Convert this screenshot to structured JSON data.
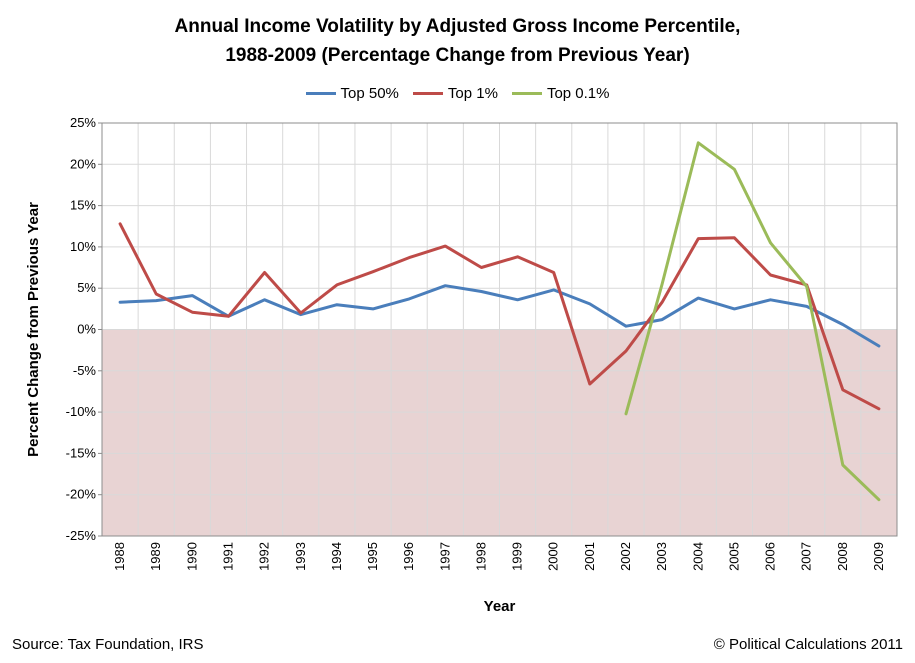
{
  "chart_data": {
    "type": "line",
    "title": "Annual Income Volatility by Adjusted Gross Income Percentile,",
    "subtitle": "1988-2009 (Percentage Change from Previous Year)",
    "xlabel": "Year",
    "ylabel": "Percent Change from Previous Year",
    "ylim": [
      -25,
      25
    ],
    "ytick_step": 5,
    "ytick_suffix": "%",
    "grid": true,
    "legend_position": "top",
    "negative_region_color": "#e8d3d3",
    "categories": [
      "1988",
      "1989",
      "1990",
      "1991",
      "1992",
      "1993",
      "1994",
      "1995",
      "1996",
      "1997",
      "1998",
      "1999",
      "2000",
      "2001",
      "2002",
      "2003",
      "2004",
      "2005",
      "2006",
      "2007",
      "2008",
      "2009"
    ],
    "series": [
      {
        "name": "Top 50%",
        "color": "#4a7ebb",
        "values": [
          3.3,
          3.5,
          4.1,
          1.6,
          3.6,
          1.8,
          3.0,
          2.5,
          3.7,
          5.3,
          4.6,
          3.6,
          4.8,
          3.1,
          0.4,
          1.2,
          3.8,
          2.5,
          3.6,
          2.8,
          0.6,
          -2.0
        ]
      },
      {
        "name": "Top 1%",
        "color": "#be4b48",
        "values": [
          12.8,
          4.3,
          2.1,
          1.6,
          6.9,
          2.0,
          5.4,
          7.0,
          8.7,
          10.1,
          7.5,
          8.8,
          6.9,
          -6.6,
          -2.6,
          3.3,
          11.0,
          11.1,
          6.6,
          5.4,
          -7.3,
          -9.6
        ]
      },
      {
        "name": "Top 0.1%",
        "color": "#9bbb59",
        "values": [
          null,
          null,
          null,
          null,
          null,
          null,
          null,
          null,
          null,
          null,
          null,
          null,
          null,
          null,
          -10.2,
          5.5,
          22.6,
          19.4,
          10.5,
          5.2,
          -16.4,
          -20.6
        ]
      }
    ]
  },
  "footer": {
    "source": "Source: Tax Foundation, IRS",
    "credit": "© Political Calculations 2011"
  }
}
